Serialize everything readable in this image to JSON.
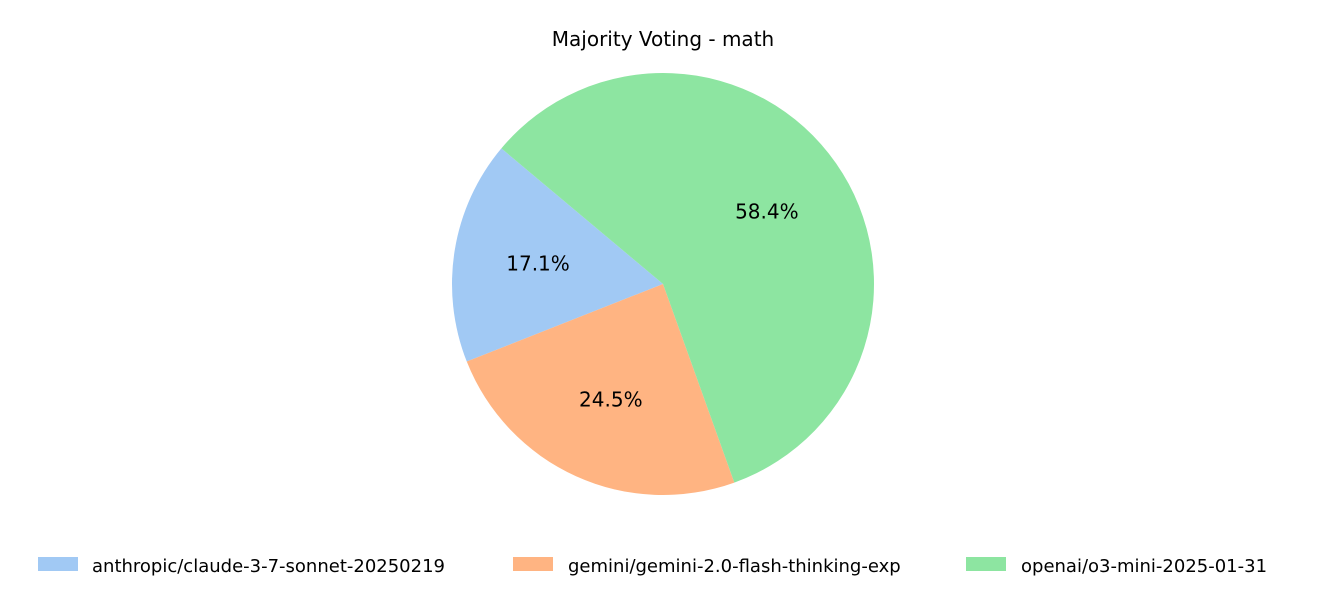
{
  "chart_data": {
    "type": "pie",
    "title": "Majority Voting - math",
    "slices": [
      {
        "label": "anthropic/claude-3-7-sonnet-20250219",
        "value": 17.1,
        "display": "17.1%",
        "color": "#a1c9f4"
      },
      {
        "label": "gemini/gemini-2.0-flash-thinking-exp",
        "value": 24.5,
        "display": "24.5%",
        "color": "#ffb482"
      },
      {
        "label": "openai/o3-mini-2025-01-31",
        "value": 58.4,
        "display": "58.4%",
        "color": "#8de5a1"
      }
    ],
    "legend_position": "bottom"
  }
}
